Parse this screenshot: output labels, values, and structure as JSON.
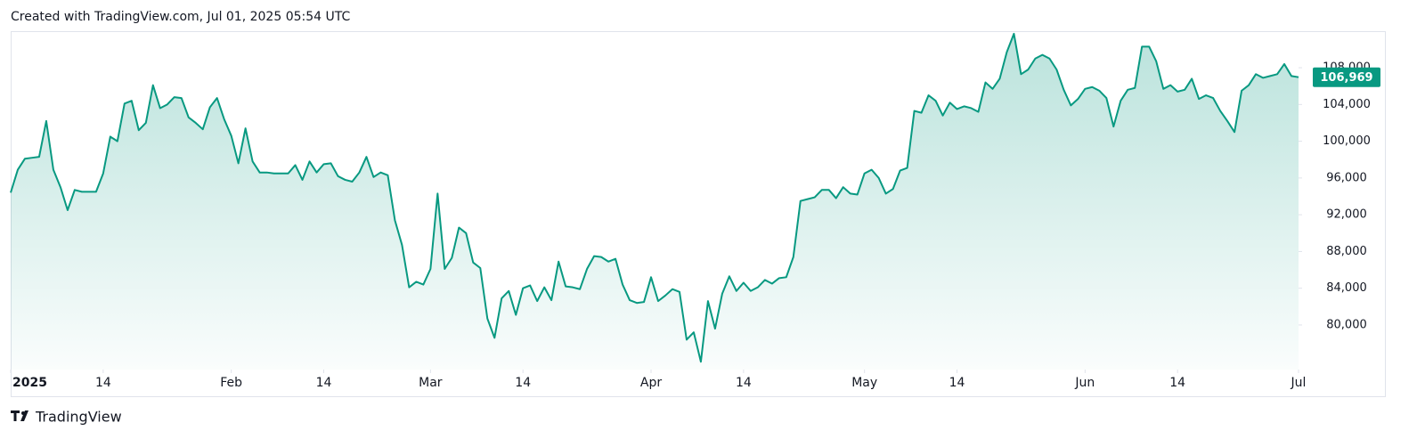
{
  "header": {
    "title": "Created with TradingView.com, Jul 01, 2025 05:54 UTC"
  },
  "footer": {
    "brand": "TradingView"
  },
  "chart_data": {
    "type": "area",
    "color": "#089981",
    "x": [
      "2025-01-01",
      "2025-01-02",
      "2025-01-03",
      "2025-01-04",
      "2025-01-05",
      "2025-01-06",
      "2025-01-07",
      "2025-01-08",
      "2025-01-09",
      "2025-01-10",
      "2025-01-11",
      "2025-01-12",
      "2025-01-13",
      "2025-01-14",
      "2025-01-15",
      "2025-01-16",
      "2025-01-17",
      "2025-01-18",
      "2025-01-19",
      "2025-01-20",
      "2025-01-21",
      "2025-01-22",
      "2025-01-23",
      "2025-01-24",
      "2025-01-25",
      "2025-01-26",
      "2025-01-27",
      "2025-01-28",
      "2025-01-29",
      "2025-01-30",
      "2025-01-31",
      "2025-02-01",
      "2025-02-02",
      "2025-02-03",
      "2025-02-04",
      "2025-02-05",
      "2025-02-06",
      "2025-02-07",
      "2025-02-08",
      "2025-02-09",
      "2025-02-10",
      "2025-02-11",
      "2025-02-12",
      "2025-02-13",
      "2025-02-14",
      "2025-02-15",
      "2025-02-16",
      "2025-02-17",
      "2025-02-18",
      "2025-02-19",
      "2025-02-20",
      "2025-02-21",
      "2025-02-22",
      "2025-02-23",
      "2025-02-24",
      "2025-02-25",
      "2025-02-26",
      "2025-02-27",
      "2025-02-28",
      "2025-03-01",
      "2025-03-02",
      "2025-03-03",
      "2025-03-04",
      "2025-03-05",
      "2025-03-06",
      "2025-03-07",
      "2025-03-08",
      "2025-03-09",
      "2025-03-10",
      "2025-03-11",
      "2025-03-12",
      "2025-03-13",
      "2025-03-14",
      "2025-03-15",
      "2025-03-16",
      "2025-03-17",
      "2025-03-18",
      "2025-03-19",
      "2025-03-20",
      "2025-03-21",
      "2025-03-22",
      "2025-03-23",
      "2025-03-24",
      "2025-03-25",
      "2025-03-26",
      "2025-03-27",
      "2025-03-28",
      "2025-03-29",
      "2025-03-30",
      "2025-03-31",
      "2025-04-01",
      "2025-04-02",
      "2025-04-03",
      "2025-04-04",
      "2025-04-05",
      "2025-04-06",
      "2025-04-07",
      "2025-04-08",
      "2025-04-09",
      "2025-04-10",
      "2025-04-11",
      "2025-04-12",
      "2025-04-13",
      "2025-04-14",
      "2025-04-15",
      "2025-04-16",
      "2025-04-17",
      "2025-04-18",
      "2025-04-19",
      "2025-04-20",
      "2025-04-21",
      "2025-04-22",
      "2025-04-23",
      "2025-04-24",
      "2025-04-25",
      "2025-04-26",
      "2025-04-27",
      "2025-04-28",
      "2025-04-29",
      "2025-04-30",
      "2025-05-01",
      "2025-05-02",
      "2025-05-03",
      "2025-05-04",
      "2025-05-05",
      "2025-05-06",
      "2025-05-07",
      "2025-05-08",
      "2025-05-09",
      "2025-05-10",
      "2025-05-11",
      "2025-05-12",
      "2025-05-13",
      "2025-05-14",
      "2025-05-15",
      "2025-05-16",
      "2025-05-17",
      "2025-05-18",
      "2025-05-19",
      "2025-05-20",
      "2025-05-21",
      "2025-05-22",
      "2025-05-23",
      "2025-05-24",
      "2025-05-25",
      "2025-05-26",
      "2025-05-27",
      "2025-05-28",
      "2025-05-29",
      "2025-05-30",
      "2025-05-31",
      "2025-06-01",
      "2025-06-02",
      "2025-06-03",
      "2025-06-04",
      "2025-06-05",
      "2025-06-06",
      "2025-06-07",
      "2025-06-08",
      "2025-06-09",
      "2025-06-10",
      "2025-06-11",
      "2025-06-12",
      "2025-06-13",
      "2025-06-14",
      "2025-06-15",
      "2025-06-16",
      "2025-06-17",
      "2025-06-18",
      "2025-06-19",
      "2025-06-20",
      "2025-06-21",
      "2025-06-22",
      "2025-06-23",
      "2025-06-24",
      "2025-06-25",
      "2025-06-26",
      "2025-06-27",
      "2025-06-28",
      "2025-06-29",
      "2025-06-30",
      "2025-07-01"
    ],
    "values": [
      94400,
      96900,
      98100,
      98200,
      98300,
      102200,
      96900,
      95000,
      92500,
      94700,
      94500,
      94500,
      94500,
      96500,
      100500,
      100000,
      104100,
      104400,
      101200,
      102000,
      106100,
      103600,
      104000,
      104800,
      104700,
      102600,
      102000,
      101300,
      103700,
      104700,
      102400,
      100600,
      97600,
      101400,
      97800,
      96600,
      96600,
      96500,
      96500,
      96500,
      97400,
      95800,
      97800,
      96600,
      97500,
      97600,
      96200,
      95800,
      95600,
      96600,
      98300,
      96100,
      96600,
      96300,
      91400,
      88700,
      84100,
      84700,
      84400,
      86100,
      94300,
      86100,
      87300,
      90600,
      90000,
      86800,
      86200,
      80700,
      78600,
      82900,
      83700,
      81100,
      84000,
      84300,
      82600,
      84100,
      82700,
      86900,
      84200,
      84100,
      83900,
      86100,
      87500,
      87400,
      86900,
      87200,
      84400,
      82700,
      82400,
      82500,
      85200,
      82600,
      83200,
      83900,
      83600,
      78400,
      79200,
      76000,
      82600,
      79600,
      83400,
      85300,
      83700,
      84600,
      83700,
      84100,
      84900,
      84500,
      85100,
      85200,
      87400,
      93500,
      93700,
      93900,
      94700,
      94700,
      93800,
      95000,
      94300,
      94200,
      96500,
      96900,
      96000,
      94300,
      94800,
      96800,
      97100,
      103300,
      103100,
      105000,
      104400,
      102800,
      104200,
      103500,
      103800,
      103600,
      103200,
      106400,
      105700,
      106800,
      109700,
      111700,
      107300,
      107800,
      109000,
      109400,
      109000,
      107800,
      105600,
      103900,
      104600,
      105700,
      105900,
      105500,
      104700,
      101600,
      104400,
      105600,
      105800,
      110300,
      110300,
      108700,
      105700,
      106100,
      105400,
      105600,
      106800,
      104600,
      105000,
      104700,
      103300,
      102200,
      101000,
      105500,
      106100,
      107300,
      106900,
      107100,
      107300,
      108400,
      107100,
      106969
    ],
    "last_price": {
      "value": 106969,
      "label": "106,969"
    },
    "xlim": [
      "2025-01-01",
      "2025-07-01"
    ],
    "xticks": [
      {
        "value": "2025-01-01",
        "label": "2025"
      },
      {
        "value": "2025-01-14",
        "label": "14"
      },
      {
        "value": "2025-02-01",
        "label": "Feb"
      },
      {
        "value": "2025-02-14",
        "label": "14"
      },
      {
        "value": "2025-03-01",
        "label": "Mar"
      },
      {
        "value": "2025-03-14",
        "label": "14"
      },
      {
        "value": "2025-04-01",
        "label": "Apr"
      },
      {
        "value": "2025-04-14",
        "label": "14"
      },
      {
        "value": "2025-05-01",
        "label": "May"
      },
      {
        "value": "2025-05-14",
        "label": "14"
      },
      {
        "value": "2025-06-01",
        "label": "Jun"
      },
      {
        "value": "2025-06-14",
        "label": "14"
      },
      {
        "value": "2025-07-01",
        "label": "Jul"
      }
    ],
    "ylim": [
      75150,
      111980
    ],
    "yticks": [
      {
        "value": 80000,
        "label": "80,000"
      },
      {
        "value": 84000,
        "label": "84,000"
      },
      {
        "value": 88000,
        "label": "88,000"
      },
      {
        "value": 92000,
        "label": "92,000"
      },
      {
        "value": 96000,
        "label": "96,000"
      },
      {
        "value": 100000,
        "label": "100,000"
      },
      {
        "value": 104000,
        "label": "104,000"
      },
      {
        "value": 108000,
        "label": "108,000"
      }
    ]
  }
}
